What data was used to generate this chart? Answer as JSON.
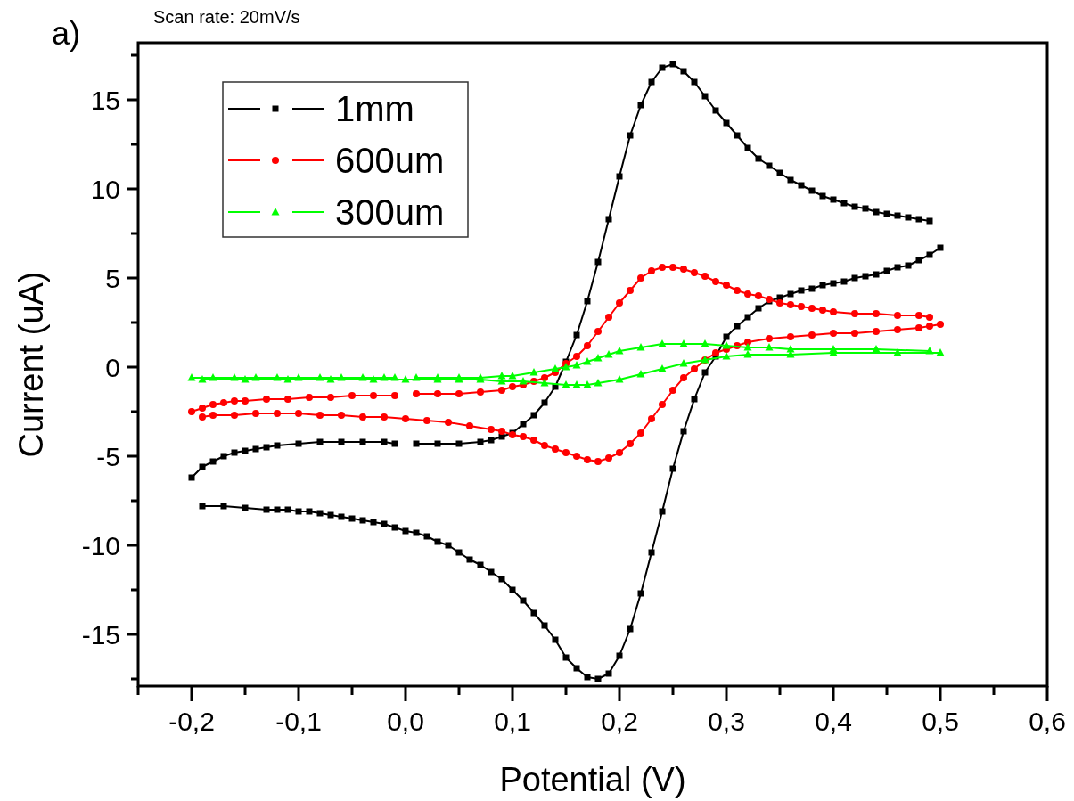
{
  "chart_data": {
    "type": "line",
    "title": "Scan rate: 20mV/s",
    "xlabel": "Potential (V)",
    "ylabel": "Current (uA)",
    "annotations": [
      "a)"
    ],
    "xlim": [
      -0.25,
      0.6
    ],
    "ylim": [
      -17.9,
      18.2
    ],
    "xticks": [
      {
        "value": -0.25,
        "label": null
      },
      {
        "value": -0.2,
        "label": "-0,2"
      },
      {
        "value": -0.15,
        "label": null
      },
      {
        "value": -0.1,
        "label": "-0,1"
      },
      {
        "value": -0.05,
        "label": null
      },
      {
        "value": 0,
        "label": "0,0"
      },
      {
        "value": 0.05,
        "label": null
      },
      {
        "value": 0.1,
        "label": "0,1"
      },
      {
        "value": 0.15,
        "label": null
      },
      {
        "value": 0.2,
        "label": "0,2"
      },
      {
        "value": 0.25,
        "label": null
      },
      {
        "value": 0.3,
        "label": "0,3"
      },
      {
        "value": 0.35,
        "label": null
      },
      {
        "value": 0.4,
        "label": "0,4"
      },
      {
        "value": 0.45,
        "label": null
      },
      {
        "value": 0.5,
        "label": "0,5"
      },
      {
        "value": 0.55,
        "label": null
      },
      {
        "value": 0.6,
        "label": "0,6"
      }
    ],
    "yticks": [
      {
        "value": -17.5,
        "label": null
      },
      -15,
      {
        "value": -12.5,
        "label": null
      },
      -10,
      {
        "value": -7.5,
        "label": null
      },
      -5,
      {
        "value": -2.5,
        "label": null
      },
      0,
      {
        "value": 2.5,
        "label": null
      },
      5,
      {
        "value": 7.5,
        "label": null
      },
      10,
      {
        "value": 12.5,
        "label": null
      },
      15,
      {
        "value": 17.5,
        "label": null
      }
    ],
    "grid": false,
    "legend": "top left",
    "line_style": "solid",
    "series": [
      {
        "name": "1mm",
        "color": "#000000",
        "marker": "square",
        "x": [
          -0.2,
          -0.19,
          -0.18,
          -0.17,
          -0.16,
          -0.15,
          -0.14,
          -0.13,
          -0.12,
          -0.1,
          -0.08,
          -0.06,
          -0.04,
          -0.02,
          -0.01,
          0,
          0.01,
          0.03,
          0.05,
          0.07,
          0.08,
          0.09,
          0.1,
          0.11,
          0.12,
          0.13,
          0.14,
          0.15,
          0.16,
          0.17,
          0.18,
          0.19,
          0.2,
          0.21,
          0.22,
          0.23,
          0.24,
          0.25,
          0.26,
          0.27,
          0.28,
          0.29,
          0.3,
          0.31,
          0.32,
          0.33,
          0.34,
          0.35,
          0.36,
          0.37,
          0.38,
          0.39,
          0.4,
          0.41,
          0.42,
          0.43,
          0.44,
          0.45,
          0.46,
          0.47,
          0.48,
          0.49,
          0.495,
          0.5,
          0.49,
          0.48,
          0.47,
          0.46,
          0.45,
          0.44,
          0.43,
          0.42,
          0.41,
          0.4,
          0.39,
          0.38,
          0.37,
          0.36,
          0.35,
          0.34,
          0.33,
          0.32,
          0.31,
          0.3,
          0.29,
          0.28,
          0.27,
          0.26,
          0.25,
          0.24,
          0.23,
          0.22,
          0.21,
          0.2,
          0.19,
          0.18,
          0.17,
          0.16,
          0.15,
          0.14,
          0.13,
          0.12,
          0.11,
          0.1,
          0.09,
          0.08,
          0.07,
          0.06,
          0.05,
          0.04,
          0.03,
          0.02,
          0.01,
          0,
          -0.01,
          -0.02,
          -0.03,
          -0.04,
          -0.05,
          -0.06,
          -0.07,
          -0.08,
          -0.09,
          -0.1,
          -0.11,
          -0.12,
          -0.13,
          -0.15,
          -0.17,
          -0.19
        ],
        "values": [
          -6.2,
          -5.6,
          -5.3,
          -5,
          -4.8,
          -4.7,
          -4.6,
          -4.5,
          -4.4,
          -4.3,
          -4.2,
          -4.2,
          -4.2,
          -4.2,
          -4.3,
          null,
          -4.3,
          -4.3,
          -4.3,
          -4.2,
          -4.1,
          -3.9,
          -3.7,
          -3.2,
          -2.7,
          -2,
          -1.1,
          0.3,
          1.8,
          3.7,
          5.9,
          8.3,
          10.7,
          13,
          14.7,
          16,
          16.8,
          17,
          16.6,
          16,
          15.2,
          14.4,
          13.7,
          13,
          12.3,
          11.7,
          11.3,
          10.9,
          10.5,
          10.2,
          9.9,
          9.6,
          9.4,
          9.2,
          9,
          8.9,
          8.7,
          8.6,
          8.5,
          8.4,
          8.3,
          8.2,
          null,
          6.7,
          6.3,
          6,
          5.7,
          5.6,
          5.4,
          5.2,
          5.1,
          5,
          4.8,
          4.7,
          4.6,
          4.4,
          4.3,
          4.1,
          3.9,
          3.7,
          3.3,
          2.8,
          2.3,
          1.7,
          0.6,
          -0.3,
          -1.8,
          -3.6,
          -5.7,
          -8.1,
          -10.4,
          -12.7,
          -14.7,
          -16.2,
          -17.2,
          -17.5,
          -17.4,
          -16.9,
          -16.3,
          -15.3,
          -14.5,
          -13.8,
          -13.1,
          -12.5,
          -11.9,
          -11.5,
          -11.1,
          -10.8,
          -10.4,
          -10,
          -9.8,
          -9.5,
          -9.3,
          -9.2,
          -9,
          -8.8,
          -8.7,
          -8.6,
          -8.5,
          -8.4,
          -8.3,
          -8.2,
          -8.1,
          -8.1,
          -8,
          -8,
          -8,
          -7.9,
          -7.8,
          -7.8
        ]
      },
      {
        "name": "600um",
        "color": "#ff0000",
        "marker": "circle",
        "x": [
          -0.2,
          -0.19,
          -0.18,
          -0.17,
          -0.16,
          -0.15,
          -0.13,
          -0.11,
          -0.09,
          -0.07,
          -0.05,
          -0.03,
          -0.01,
          0,
          0.01,
          0.03,
          0.05,
          0.07,
          0.09,
          0.1,
          0.11,
          0.12,
          0.13,
          0.14,
          0.15,
          0.16,
          0.17,
          0.18,
          0.19,
          0.2,
          0.21,
          0.22,
          0.23,
          0.24,
          0.25,
          0.26,
          0.27,
          0.28,
          0.29,
          0.3,
          0.31,
          0.32,
          0.33,
          0.34,
          0.35,
          0.36,
          0.37,
          0.38,
          0.39,
          0.4,
          0.42,
          0.44,
          0.46,
          0.48,
          0.49,
          0.495,
          0.5,
          0.49,
          0.48,
          0.46,
          0.44,
          0.42,
          0.4,
          0.38,
          0.36,
          0.34,
          0.32,
          0.31,
          0.3,
          0.29,
          0.28,
          0.27,
          0.26,
          0.25,
          0.24,
          0.23,
          0.22,
          0.21,
          0.2,
          0.19,
          0.18,
          0.17,
          0.16,
          0.15,
          0.14,
          0.13,
          0.12,
          0.11,
          0.1,
          0.09,
          0.08,
          0.06,
          0.04,
          0.02,
          0,
          -0.02,
          -0.04,
          -0.06,
          -0.08,
          -0.1,
          -0.12,
          -0.14,
          -0.16,
          -0.18,
          -0.19
        ],
        "values": [
          -2.5,
          -2.3,
          -2.1,
          -2,
          -1.9,
          -1.9,
          -1.8,
          -1.8,
          -1.7,
          -1.7,
          -1.6,
          -1.6,
          -1.6,
          null,
          -1.5,
          -1.5,
          -1.5,
          -1.4,
          -1.3,
          -1.1,
          -1,
          -0.8,
          -0.6,
          -0.3,
          0.2,
          0.6,
          1.2,
          2,
          2.8,
          3.6,
          4.3,
          5,
          5.4,
          5.6,
          5.6,
          5.5,
          5.3,
          5.1,
          4.8,
          4.6,
          4.3,
          4.1,
          4,
          3.8,
          3.6,
          3.5,
          3.4,
          3.3,
          3.2,
          3.1,
          3,
          3,
          2.9,
          2.9,
          2.8,
          null,
          2.4,
          2.3,
          2.2,
          2.1,
          2,
          1.9,
          1.9,
          1.8,
          1.7,
          1.6,
          1.4,
          1.2,
          1,
          0.8,
          0.4,
          -0.1,
          -0.6,
          -1.3,
          -2.1,
          -2.9,
          -3.7,
          -4.3,
          -4.8,
          -5.1,
          -5.3,
          -5.2,
          -5,
          -4.8,
          -4.6,
          -4.4,
          -4.1,
          -3.9,
          -3.8,
          -3.6,
          -3.5,
          -3.3,
          -3.1,
          -3,
          -2.9,
          -2.8,
          -2.8,
          -2.7,
          -2.7,
          -2.6,
          -2.6,
          -2.6,
          -2.7,
          -2.7,
          -2.8
        ]
      },
      {
        "name": "300um",
        "color": "#00ff00",
        "marker": "triangle",
        "x": [
          -0.2,
          -0.18,
          -0.16,
          -0.14,
          -0.12,
          -0.1,
          -0.08,
          -0.06,
          -0.04,
          -0.02,
          -0.01,
          0,
          0.01,
          0.03,
          0.05,
          0.07,
          0.09,
          0.1,
          0.12,
          0.14,
          0.15,
          0.16,
          0.17,
          0.18,
          0.19,
          0.2,
          0.22,
          0.24,
          0.26,
          0.28,
          0.3,
          0.32,
          0.34,
          0.36,
          0.4,
          0.44,
          0.49,
          0.495,
          0.5,
          0.46,
          0.4,
          0.36,
          0.32,
          0.3,
          0.28,
          0.26,
          0.24,
          0.22,
          0.2,
          0.18,
          0.17,
          0.16,
          0.15,
          0.13,
          0.11,
          0.09,
          0.07,
          0.05,
          0.03,
          0,
          -0.03,
          -0.07,
          -0.11,
          -0.15,
          -0.19
        ],
        "values": [
          -0.6,
          -0.6,
          -0.6,
          -0.6,
          -0.6,
          -0.6,
          -0.6,
          -0.6,
          -0.6,
          -0.6,
          -0.6,
          null,
          -0.6,
          -0.6,
          -0.6,
          -0.6,
          -0.5,
          -0.5,
          -0.3,
          -0.1,
          0,
          0.1,
          0.3,
          0.5,
          0.7,
          0.9,
          1.1,
          1.3,
          1.3,
          1.3,
          1.2,
          1.1,
          1.1,
          1,
          1,
          1,
          0.9,
          null,
          0.8,
          0.8,
          0.8,
          0.7,
          0.7,
          0.6,
          0.4,
          0.2,
          -0.1,
          -0.4,
          -0.7,
          -0.9,
          -1,
          -1,
          -1,
          -0.9,
          -0.8,
          -0.8,
          -0.7,
          -0.7,
          -0.7,
          -0.7,
          -0.7,
          -0.7,
          -0.7,
          -0.7,
          -0.7
        ]
      }
    ]
  }
}
